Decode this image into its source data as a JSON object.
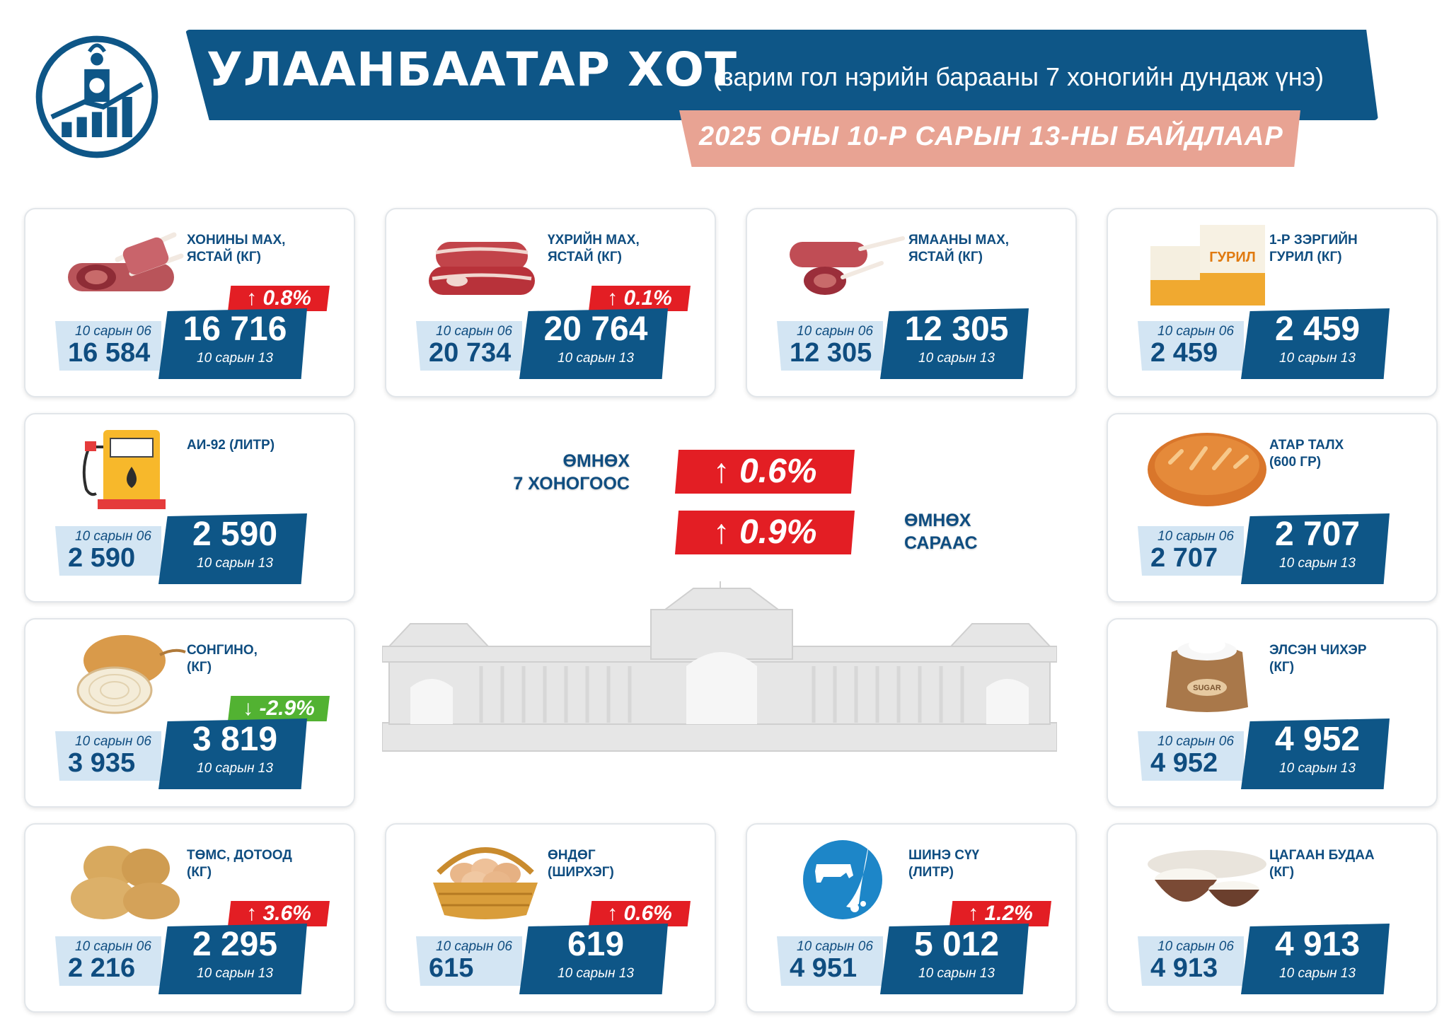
{
  "header": {
    "title": "УЛААНБААТАР ХОТ",
    "subtitle": "(зарим гол нэрийн барааны 7 хоногийн дундаж үнэ)",
    "date": "2025 ОНЫ 10-Р САРЫН 13-НЫ БАЙДЛААР"
  },
  "colors": {
    "primary": "#0e5687",
    "increase": "#e31e24",
    "decrease": "#52b232",
    "date_banner": "#e8a393"
  },
  "prev_caption": "10 сарын 06",
  "cur_caption": "10 сарын 13",
  "summary": {
    "week_label": "ӨМНӨХ\n7 ХОНОГООС",
    "week_change": "↑ 0.6%",
    "month_label": "ӨМНӨХ\nСАРААС",
    "month_change": "↑ 0.9%"
  },
  "items": [
    {
      "label": "ХОНИНЫ МАХ,\nЯСТАЙ (КГ)",
      "prev": "16 584",
      "cur": "16 716",
      "change": "↑ 0.8%",
      "direction": "up",
      "icon": "mutton-icon"
    },
    {
      "label": "ҮХРИЙН МАХ,\nЯСТАЙ (КГ)",
      "prev": "20 734",
      "cur": "20 764",
      "change": "↑ 0.1%",
      "direction": "up",
      "icon": "beef-icon"
    },
    {
      "label": "ЯМААНЫ МАХ,\nЯСТАЙ (КГ)",
      "prev": "12 305",
      "cur": "12 305",
      "change": "",
      "direction": "none",
      "icon": "goat-meat-icon"
    },
    {
      "label": "1-Р ЗЭРГИЙН\nГУРИЛ (КГ)",
      "prev": "2 459",
      "cur": "2 459",
      "change": "",
      "direction": "none",
      "icon": "flour-icon",
      "icon_text": "ГУРИЛ"
    },
    {
      "label": "АИ-92 (ЛИТР)",
      "prev": "2 590",
      "cur": "2 590",
      "change": "",
      "direction": "none",
      "icon": "fuel-pump-icon"
    },
    {
      "label": "АТАР ТАЛХ\n(600 ГР)",
      "prev": "2 707",
      "cur": "2 707",
      "change": "",
      "direction": "none",
      "icon": "bread-icon"
    },
    {
      "label": "СОНГИНО,\n(КГ)",
      "prev": "3 935",
      "cur": "3 819",
      "change": "↓ -2.9%",
      "direction": "down",
      "icon": "onion-icon"
    },
    {
      "label": "ЭЛСЭН ЧИХЭР\n(КГ)",
      "prev": "4 952",
      "cur": "4 952",
      "change": "",
      "direction": "none",
      "icon": "sugar-sack-icon",
      "icon_text": "SUGAR"
    },
    {
      "label": "ТӨМС, ДОТООД\n(КГ)",
      "prev": "2 216",
      "cur": "2 295",
      "change": "↑ 3.6%",
      "direction": "up",
      "icon": "potato-icon"
    },
    {
      "label": "ӨНДӨГ\n(ШИРХЭГ)",
      "prev": "615",
      "cur": "619",
      "change": "↑ 0.6%",
      "direction": "up",
      "icon": "egg-basket-icon"
    },
    {
      "label": "ШИНЭ СҮҮ\n(ЛИТР)",
      "prev": "4 951",
      "cur": "5 012",
      "change": "↑ 1.2%",
      "direction": "up",
      "icon": "milk-icon"
    },
    {
      "label": "ЦАГААН БУДАА\n(КГ)",
      "prev": "4 913",
      "cur": "4 913",
      "change": "",
      "direction": "none",
      "icon": "rice-bowl-icon"
    }
  ]
}
